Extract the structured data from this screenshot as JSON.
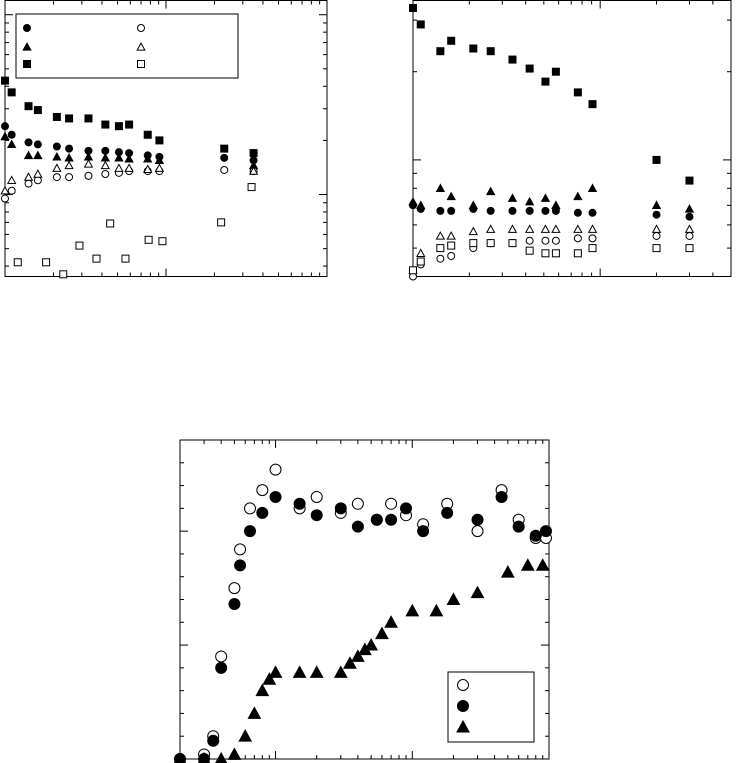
{
  "colors": {
    "axis": "#000000",
    "marker": "#000000",
    "background": "#ffffff"
  },
  "chart_data": [
    {
      "id": "top-left",
      "type": "scatter",
      "title": "",
      "xlabel": "",
      "ylabel": "",
      "xscale": "log",
      "yscale": "log",
      "xlim": [
        1,
        100
      ],
      "ylim": [
        0.35,
        12
      ],
      "legend": {
        "placement": "top",
        "entries": [
          "",
          "",
          "",
          "",
          "",
          ""
        ]
      },
      "series": [
        {
          "marker": "filled-circle",
          "x": [
            1,
            1.1,
            1.4,
            1.6,
            2.1,
            2.5,
            3.3,
            4.2,
            5.1,
            5.9,
            7.7,
            9.1,
            23,
            35
          ],
          "y": [
            2.4,
            2.15,
            1.95,
            1.9,
            1.85,
            1.8,
            1.75,
            1.75,
            1.72,
            1.7,
            1.65,
            1.62,
            1.6,
            1.55
          ]
        },
        {
          "marker": "filled-triangle",
          "x": [
            1,
            1.1,
            1.4,
            1.6,
            2.1,
            2.5,
            3.3,
            4.2,
            5.1,
            5.9,
            7.7,
            9.1,
            35
          ],
          "y": [
            2.1,
            1.9,
            1.65,
            1.65,
            1.62,
            1.6,
            1.62,
            1.6,
            1.6,
            1.58,
            1.58,
            1.55,
            1.45
          ]
        },
        {
          "marker": "filled-square",
          "x": [
            1,
            1.1,
            1.4,
            1.6,
            2.1,
            2.5,
            3.3,
            4.2,
            5.1,
            5.9,
            7.7,
            9.1,
            23,
            35
          ],
          "y": [
            4.3,
            3.7,
            3.1,
            2.95,
            2.7,
            2.65,
            2.65,
            2.45,
            2.4,
            2.45,
            2.15,
            2.0,
            1.8,
            1.7
          ]
        },
        {
          "marker": "open-circle",
          "x": [
            1,
            1.1,
            1.4,
            1.6,
            2.1,
            2.5,
            3.3,
            4.2,
            5.1,
            5.9,
            7.7,
            9.1,
            23,
            35
          ],
          "y": [
            0.95,
            1.05,
            1.15,
            1.2,
            1.25,
            1.25,
            1.27,
            1.3,
            1.32,
            1.35,
            1.35,
            1.35,
            1.37,
            1.35
          ]
        },
        {
          "marker": "open-triangle",
          "x": [
            1,
            1.1,
            1.4,
            1.6,
            2.1,
            2.5,
            3.3,
            4.2,
            5.1,
            5.9,
            7.7,
            9.1,
            35
          ],
          "y": [
            1.05,
            1.2,
            1.25,
            1.3,
            1.4,
            1.45,
            1.48,
            1.45,
            1.4,
            1.4,
            1.38,
            1.4,
            1.35
          ]
        },
        {
          "marker": "open-square",
          "x": [
            1.2,
            1.8,
            2.3,
            2.9,
            3.7,
            4.5,
            5.6,
            7.8,
            9.5,
            22,
            34
          ],
          "y": [
            0.42,
            0.42,
            0.36,
            0.52,
            0.44,
            0.69,
            0.44,
            0.56,
            0.55,
            0.7,
            1.1
          ]
        }
      ]
    },
    {
      "id": "top-right",
      "type": "scatter",
      "title": "",
      "xlabel": "",
      "ylabel": "",
      "xscale": "log",
      "yscale": "log",
      "xlim": [
        1,
        50
      ],
      "ylim": [
        0.4,
        3.5
      ],
      "series": [
        {
          "marker": "filled-square",
          "x": [
            1,
            1.1,
            1.4,
            1.6,
            2.1,
            2.6,
            3.4,
            4.2,
            5.1,
            5.8,
            7.6,
            9.1,
            20,
            30
          ],
          "y": [
            3.3,
            2.9,
            2.35,
            2.55,
            2.4,
            2.35,
            2.2,
            2.05,
            1.85,
            2.0,
            1.7,
            1.55,
            1.0,
            0.85
          ]
        },
        {
          "marker": "filled-circle",
          "x": [
            1,
            1.1,
            1.4,
            1.6,
            2.1,
            2.6,
            3.4,
            4.2,
            5.1,
            5.8,
            7.6,
            9.1,
            20,
            30
          ],
          "y": [
            0.7,
            0.68,
            0.67,
            0.67,
            0.68,
            0.67,
            0.67,
            0.67,
            0.67,
            0.67,
            0.66,
            0.66,
            0.65,
            0.64
          ]
        },
        {
          "marker": "filled-triangle",
          "x": [
            1,
            1.1,
            1.4,
            1.6,
            2.1,
            2.6,
            3.4,
            4.2,
            5.1,
            5.8,
            7.6,
            9.1,
            20,
            30
          ],
          "y": [
            0.72,
            0.7,
            0.8,
            0.75,
            0.7,
            0.78,
            0.74,
            0.72,
            0.74,
            0.7,
            0.75,
            0.8,
            0.7,
            0.68
          ]
        },
        {
          "marker": "open-triangle",
          "x": [
            1,
            1.1,
            1.4,
            1.6,
            2.1,
            2.6,
            3.4,
            4.2,
            5.1,
            5.8,
            7.6,
            9.1,
            20,
            30
          ],
          "y": [
            0.42,
            0.48,
            0.55,
            0.55,
            0.57,
            0.58,
            0.58,
            0.58,
            0.58,
            0.58,
            0.58,
            0.58,
            0.58,
            0.58
          ]
        },
        {
          "marker": "open-circle",
          "x": [
            1,
            1.1,
            1.4,
            1.6,
            2.1,
            2.6,
            3.4,
            4.2,
            5.1,
            5.8,
            7.6,
            9.1,
            20,
            30
          ],
          "y": [
            0.38,
            0.44,
            0.46,
            0.47,
            0.5,
            0.52,
            0.52,
            0.53,
            0.53,
            0.53,
            0.54,
            0.54,
            0.55,
            0.55
          ]
        },
        {
          "marker": "open-square",
          "x": [
            1,
            1.1,
            1.4,
            1.6,
            2.1,
            2.6,
            3.4,
            4.2,
            5.1,
            5.8,
            7.6,
            9.1,
            20,
            30
          ],
          "y": [
            0.42,
            0.45,
            0.5,
            0.51,
            0.52,
            0.52,
            0.52,
            0.49,
            0.48,
            0.48,
            0.48,
            0.5,
            0.5,
            0.5
          ]
        }
      ]
    },
    {
      "id": "bottom-center",
      "type": "scatter",
      "title": "",
      "xlabel": "",
      "ylabel": "",
      "xscale": "log",
      "yscale": "linear",
      "xlim": [
        0.2,
        100
      ],
      "ylim": [
        0,
        1.4
      ],
      "legend": {
        "placement": "bottom-right",
        "entries": [
          "",
          "",
          ""
        ]
      },
      "series": [
        {
          "marker": "open-circle",
          "x": [
            0.2,
            0.3,
            0.35,
            0.4,
            0.5,
            0.55,
            0.65,
            0.8,
            1.0,
            1.5,
            2.0,
            3.0,
            4.0,
            5.5,
            7.0,
            9.0,
            12,
            18,
            30,
            45,
            60,
            80,
            95
          ],
          "y": [
            0.0,
            0.02,
            0.1,
            0.45,
            0.75,
            0.92,
            1.1,
            1.18,
            1.27,
            1.1,
            1.15,
            1.08,
            1.12,
            1.05,
            1.12,
            1.07,
            1.03,
            1.12,
            1.0,
            1.18,
            1.05,
            0.97,
            0.97
          ]
        },
        {
          "marker": "filled-circle",
          "x": [
            0.2,
            0.3,
            0.35,
            0.4,
            0.5,
            0.55,
            0.65,
            0.8,
            1.0,
            1.5,
            2.0,
            3.0,
            4.0,
            5.5,
            7.0,
            9.0,
            12,
            18,
            30,
            45,
            60,
            80,
            95
          ],
          "y": [
            0.0,
            0.0,
            0.08,
            0.4,
            0.68,
            0.85,
            1.0,
            1.08,
            1.15,
            1.12,
            1.07,
            1.1,
            1.02,
            1.05,
            1.05,
            1.1,
            1.0,
            1.08,
            1.05,
            1.15,
            1.02,
            0.98,
            1.0
          ]
        },
        {
          "marker": "filled-triangle",
          "x": [
            0.2,
            0.3,
            0.4,
            0.5,
            0.6,
            0.7,
            0.8,
            0.9,
            1.0,
            1.5,
            2.0,
            3.0,
            3.5,
            4.0,
            4.5,
            5.0,
            6.0,
            7.0,
            10,
            15,
            20,
            30,
            50,
            70,
            90
          ],
          "y": [
            0.0,
            0.0,
            0.0,
            0.02,
            0.1,
            0.2,
            0.3,
            0.35,
            0.38,
            0.38,
            0.38,
            0.38,
            0.42,
            0.45,
            0.48,
            0.5,
            0.55,
            0.6,
            0.65,
            0.65,
            0.7,
            0.73,
            0.82,
            0.85,
            0.85
          ]
        }
      ]
    }
  ]
}
